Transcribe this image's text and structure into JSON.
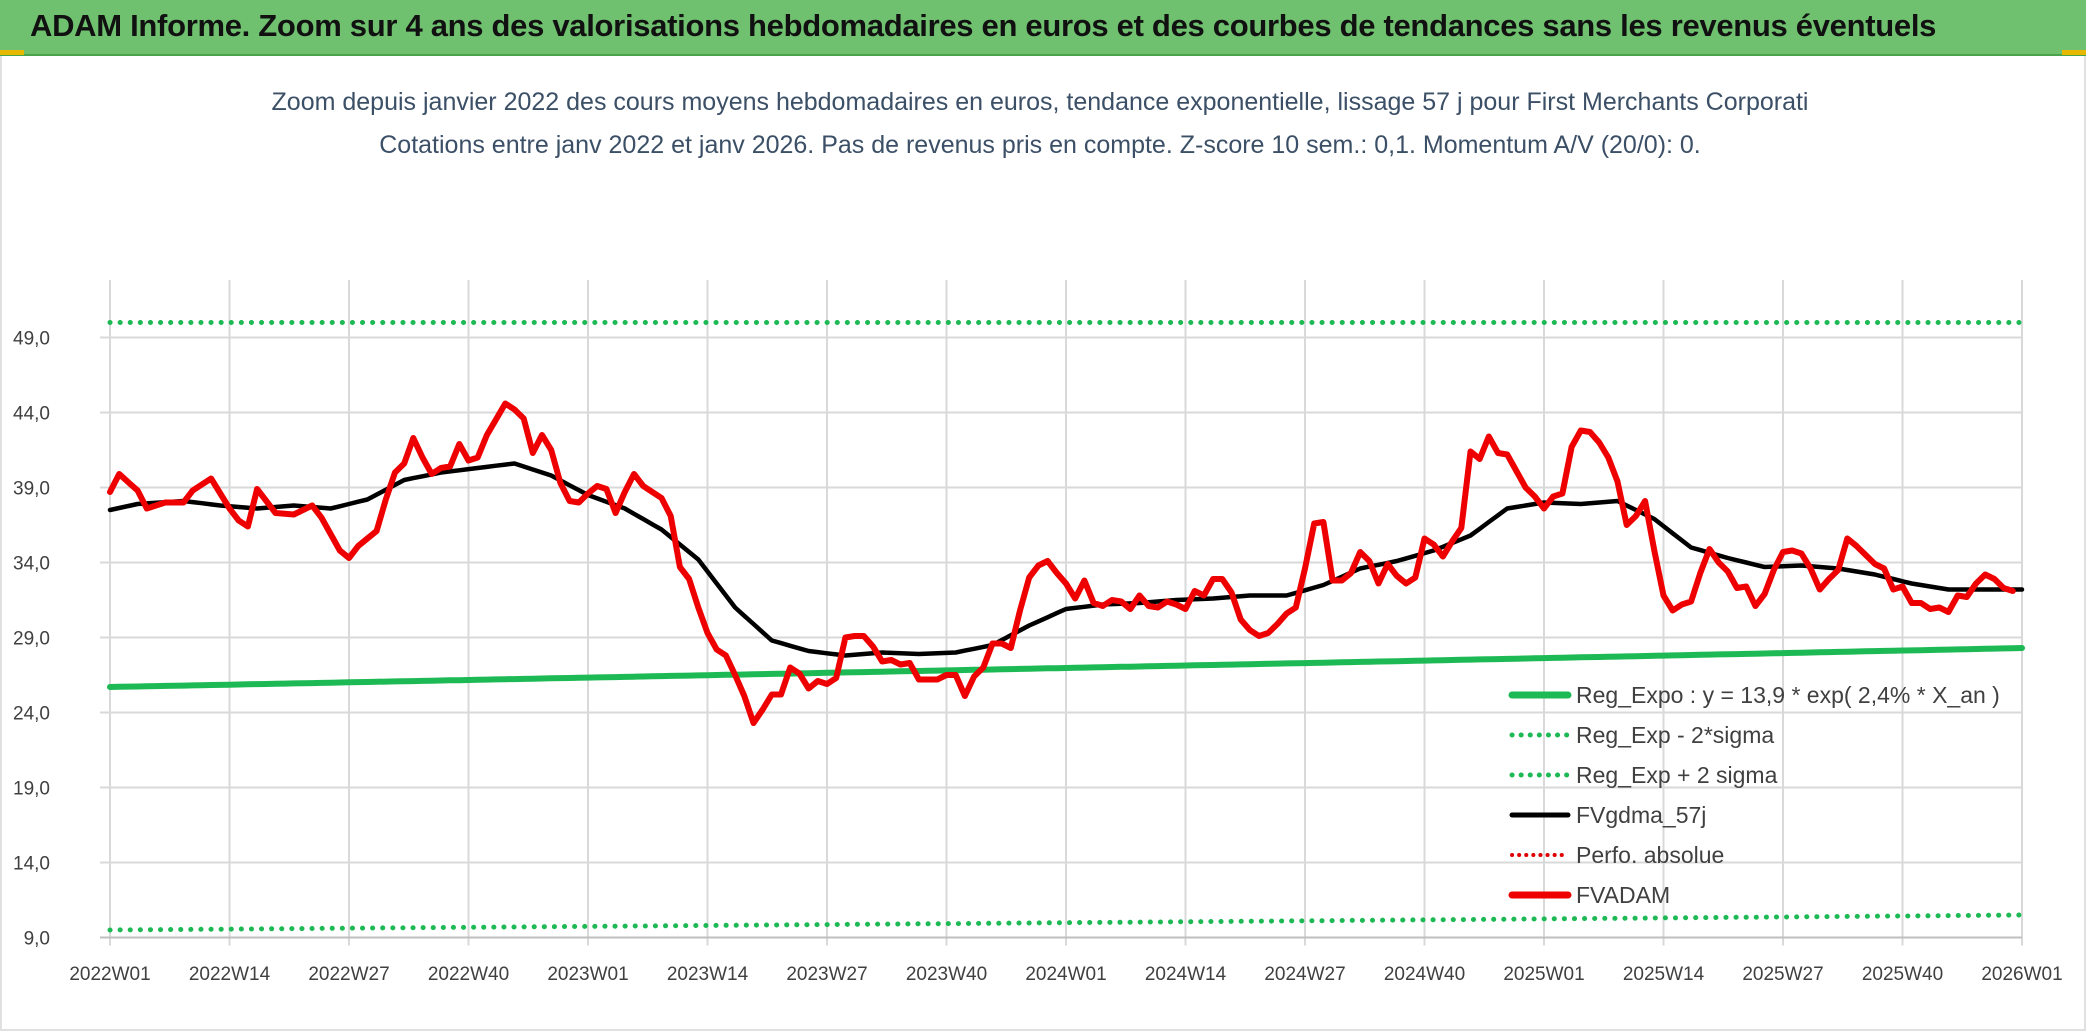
{
  "header": {
    "title": "ADAM Informe. Zoom sur 4 ans des valorisations hebdomadaires en euros et des courbes de tendances sans les revenus éventuels"
  },
  "chart_data": {
    "type": "line",
    "title": "Zoom depuis janvier 2022 des cours moyens hebdomadaires en euros, tendance exponentielle, lissage 57 j pour First Merchants Corporati",
    "subtitle": "Cotations entre janv 2022 et janv 2026. Pas de revenus pris en compte. Z-score 10 sem.: 0,1. Momentum A/V (20/0): 0.",
    "ylim": [
      9,
      51.5
    ],
    "yticks": [
      9,
      14,
      19,
      24,
      29,
      34,
      39,
      44,
      49
    ],
    "ytick_labels": [
      "9,0",
      "14,0",
      "19,0",
      "24,0",
      "29,0",
      "34,0",
      "39,0",
      "44,0",
      "49,0"
    ],
    "x_points": 209,
    "xtick_labels": [
      "2022W01",
      "2022W14",
      "2022W27",
      "2022W40",
      "2023W01",
      "2023W14",
      "2023W27",
      "2023W40",
      "2024W01",
      "2024W14",
      "2024W27",
      "2024W40",
      "2025W01",
      "2025W14",
      "2025W27",
      "2025W40",
      "2026W01"
    ],
    "xtick_index": [
      0,
      13,
      26,
      39,
      52,
      65,
      78,
      91,
      104,
      117,
      130,
      143,
      156,
      169,
      182,
      195,
      208
    ],
    "colors": {
      "reg_expo": "#1db954",
      "sigma_lines": "#1db954",
      "fvgdma": "#000000",
      "perfo": "#e00000",
      "fvadam": "#ee0000",
      "grid": "#d9d9d9"
    },
    "series": [
      {
        "name": "Reg_Expo : y = 13,9 * exp( 2,4% *  X_an )",
        "style": "solid-thick",
        "start": 25.7,
        "end": 28.3
      },
      {
        "name": "Reg_Exp - 2*sigma",
        "style": "dotted",
        "start": 9.5,
        "end": 10.5
      },
      {
        "name": "Reg_Exp + 2 sigma",
        "style": "dotted",
        "start": 50.0,
        "end": 50.0
      },
      {
        "name": "FVgdma_57j",
        "style": "solid",
        "knots": [
          [
            0,
            37.5
          ],
          [
            3,
            37.9
          ],
          [
            8,
            38.1
          ],
          [
            12,
            37.8
          ],
          [
            16,
            37.6
          ],
          [
            20,
            37.8
          ],
          [
            24,
            37.6
          ],
          [
            28,
            38.2
          ],
          [
            32,
            39.5
          ],
          [
            36,
            40.0
          ],
          [
            40,
            40.3
          ],
          [
            44,
            40.6
          ],
          [
            48,
            39.8
          ],
          [
            52,
            38.5
          ],
          [
            56,
            37.6
          ],
          [
            60,
            36.2
          ],
          [
            64,
            34.2
          ],
          [
            68,
            31.0
          ],
          [
            72,
            28.8
          ],
          [
            76,
            28.1
          ],
          [
            80,
            27.8
          ],
          [
            84,
            28.0
          ],
          [
            88,
            27.9
          ],
          [
            92,
            28.0
          ],
          [
            96,
            28.5
          ],
          [
            100,
            29.8
          ],
          [
            104,
            30.9
          ],
          [
            108,
            31.2
          ],
          [
            112,
            31.3
          ],
          [
            116,
            31.5
          ],
          [
            120,
            31.6
          ],
          [
            124,
            31.8
          ],
          [
            128,
            31.8
          ],
          [
            132,
            32.5
          ],
          [
            136,
            33.6
          ],
          [
            140,
            34.1
          ],
          [
            144,
            34.8
          ],
          [
            148,
            35.8
          ],
          [
            152,
            37.6
          ],
          [
            156,
            38.0
          ],
          [
            160,
            37.9
          ],
          [
            164,
            38.1
          ],
          [
            168,
            36.9
          ],
          [
            172,
            35.0
          ],
          [
            176,
            34.3
          ],
          [
            180,
            33.7
          ],
          [
            184,
            33.8
          ],
          [
            188,
            33.6
          ],
          [
            192,
            33.2
          ],
          [
            196,
            32.6
          ],
          [
            200,
            32.2
          ],
          [
            204,
            32.2
          ],
          [
            208,
            32.2
          ]
        ]
      },
      {
        "name": "Perfo. absolue",
        "style": "dotted-red",
        "values": []
      },
      {
        "name": "FVADAM",
        "style": "solid-thick",
        "knots": [
          [
            0,
            38.7
          ],
          [
            1,
            39.9
          ],
          [
            3,
            38.8
          ],
          [
            4,
            37.6
          ],
          [
            6,
            38.0
          ],
          [
            8,
            38.0
          ],
          [
            9,
            38.8
          ],
          [
            11,
            39.6
          ],
          [
            13,
            37.6
          ],
          [
            14,
            36.8
          ],
          [
            15,
            36.4
          ],
          [
            16,
            38.9
          ],
          [
            18,
            37.3
          ],
          [
            20,
            37.2
          ],
          [
            22,
            37.8
          ],
          [
            23,
            37.0
          ],
          [
            25,
            34.8
          ],
          [
            26,
            34.3
          ],
          [
            27,
            35.1
          ],
          [
            29,
            36.1
          ],
          [
            30,
            38.2
          ],
          [
            31,
            40.0
          ],
          [
            32,
            40.6
          ],
          [
            33,
            42.3
          ],
          [
            34,
            41.0
          ],
          [
            35,
            39.9
          ],
          [
            36,
            40.3
          ],
          [
            37,
            40.4
          ],
          [
            38,
            41.9
          ],
          [
            39,
            40.8
          ],
          [
            40,
            41.0
          ],
          [
            41,
            42.5
          ],
          [
            43,
            44.6
          ],
          [
            44,
            44.2
          ],
          [
            45,
            43.6
          ],
          [
            46,
            41.3
          ],
          [
            47,
            42.5
          ],
          [
            48,
            41.5
          ],
          [
            49,
            39.3
          ],
          [
            50,
            38.1
          ],
          [
            51,
            38.0
          ],
          [
            52,
            38.6
          ],
          [
            53,
            39.1
          ],
          [
            54,
            38.9
          ],
          [
            55,
            37.3
          ],
          [
            56,
            38.7
          ],
          [
            57,
            39.9
          ],
          [
            58,
            39.1
          ],
          [
            60,
            38.3
          ],
          [
            61,
            37.1
          ],
          [
            62,
            33.7
          ],
          [
            63,
            32.9
          ],
          [
            64,
            31.0
          ],
          [
            65,
            29.3
          ],
          [
            66,
            28.2
          ],
          [
            67,
            27.8
          ],
          [
            68,
            26.5
          ],
          [
            69,
            25.1
          ],
          [
            70,
            23.3
          ],
          [
            71,
            24.2
          ],
          [
            72,
            25.2
          ],
          [
            73,
            25.2
          ],
          [
            74,
            27.0
          ],
          [
            75,
            26.6
          ],
          [
            76,
            25.6
          ],
          [
            77,
            26.1
          ],
          [
            78,
            25.9
          ],
          [
            79,
            26.3
          ],
          [
            80,
            29.0
          ],
          [
            81,
            29.1
          ],
          [
            82,
            29.1
          ],
          [
            83,
            28.4
          ],
          [
            84,
            27.4
          ],
          [
            85,
            27.5
          ],
          [
            86,
            27.2
          ],
          [
            87,
            27.3
          ],
          [
            88,
            26.2
          ],
          [
            90,
            26.2
          ],
          [
            91,
            26.5
          ],
          [
            92,
            26.5
          ],
          [
            93,
            25.1
          ],
          [
            94,
            26.4
          ],
          [
            95,
            27.0
          ],
          [
            96,
            28.6
          ],
          [
            97,
            28.6
          ],
          [
            98,
            28.3
          ],
          [
            99,
            30.8
          ],
          [
            100,
            33.0
          ],
          [
            101,
            33.8
          ],
          [
            102,
            34.1
          ],
          [
            103,
            33.3
          ],
          [
            104,
            32.6
          ],
          [
            105,
            31.6
          ],
          [
            106,
            32.8
          ],
          [
            107,
            31.3
          ],
          [
            108,
            31.1
          ],
          [
            109,
            31.5
          ],
          [
            110,
            31.4
          ],
          [
            111,
            30.9
          ],
          [
            112,
            31.8
          ],
          [
            113,
            31.1
          ],
          [
            114,
            31.0
          ],
          [
            115,
            31.4
          ],
          [
            116,
            31.2
          ],
          [
            117,
            30.9
          ],
          [
            118,
            32.1
          ],
          [
            119,
            31.8
          ],
          [
            120,
            32.9
          ],
          [
            121,
            32.9
          ],
          [
            122,
            32.0
          ],
          [
            123,
            30.2
          ],
          [
            124,
            29.5
          ],
          [
            125,
            29.1
          ],
          [
            126,
            29.3
          ],
          [
            127,
            29.9
          ],
          [
            128,
            30.6
          ],
          [
            129,
            31.0
          ],
          [
            130,
            33.6
          ],
          [
            131,
            36.6
          ],
          [
            132,
            36.7
          ],
          [
            133,
            32.8
          ],
          [
            134,
            32.8
          ],
          [
            135,
            33.3
          ],
          [
            136,
            34.7
          ],
          [
            137,
            34.1
          ],
          [
            138,
            32.6
          ],
          [
            139,
            33.9
          ],
          [
            140,
            33.1
          ],
          [
            141,
            32.6
          ],
          [
            142,
            33.0
          ],
          [
            143,
            35.6
          ],
          [
            144,
            35.2
          ],
          [
            145,
            34.4
          ],
          [
            146,
            35.4
          ],
          [
            147,
            36.3
          ],
          [
            148,
            41.4
          ],
          [
            149,
            40.9
          ],
          [
            150,
            42.4
          ],
          [
            151,
            41.3
          ],
          [
            152,
            41.2
          ],
          [
            153,
            40.1
          ],
          [
            154,
            39.0
          ],
          [
            155,
            38.4
          ],
          [
            156,
            37.6
          ],
          [
            157,
            38.4
          ],
          [
            158,
            38.6
          ],
          [
            159,
            41.7
          ],
          [
            160,
            42.8
          ],
          [
            161,
            42.7
          ],
          [
            162,
            42.0
          ],
          [
            163,
            41.0
          ],
          [
            164,
            39.4
          ],
          [
            165,
            36.5
          ],
          [
            166,
            37.1
          ],
          [
            167,
            38.1
          ],
          [
            168,
            34.8
          ],
          [
            169,
            31.8
          ],
          [
            170,
            30.8
          ],
          [
            171,
            31.2
          ],
          [
            172,
            31.4
          ],
          [
            173,
            33.3
          ],
          [
            174,
            34.9
          ],
          [
            175,
            34.0
          ],
          [
            176,
            33.4
          ],
          [
            177,
            32.3
          ],
          [
            178,
            32.4
          ],
          [
            179,
            31.1
          ],
          [
            180,
            31.9
          ],
          [
            181,
            33.5
          ],
          [
            182,
            34.7
          ],
          [
            183,
            34.8
          ],
          [
            184,
            34.6
          ],
          [
            185,
            33.6
          ],
          [
            186,
            32.2
          ],
          [
            187,
            32.9
          ],
          [
            188,
            33.5
          ],
          [
            189,
            35.6
          ],
          [
            190,
            35.1
          ],
          [
            191,
            34.5
          ],
          [
            192,
            33.9
          ],
          [
            193,
            33.6
          ],
          [
            194,
            32.2
          ],
          [
            195,
            32.4
          ],
          [
            196,
            31.3
          ],
          [
            197,
            31.3
          ],
          [
            198,
            30.9
          ],
          [
            199,
            31.0
          ],
          [
            200,
            30.7
          ],
          [
            201,
            31.8
          ],
          [
            202,
            31.7
          ],
          [
            203,
            32.6
          ],
          [
            204,
            33.2
          ],
          [
            205,
            32.9
          ],
          [
            206,
            32.3
          ],
          [
            207,
            32.1
          ]
        ]
      }
    ]
  }
}
